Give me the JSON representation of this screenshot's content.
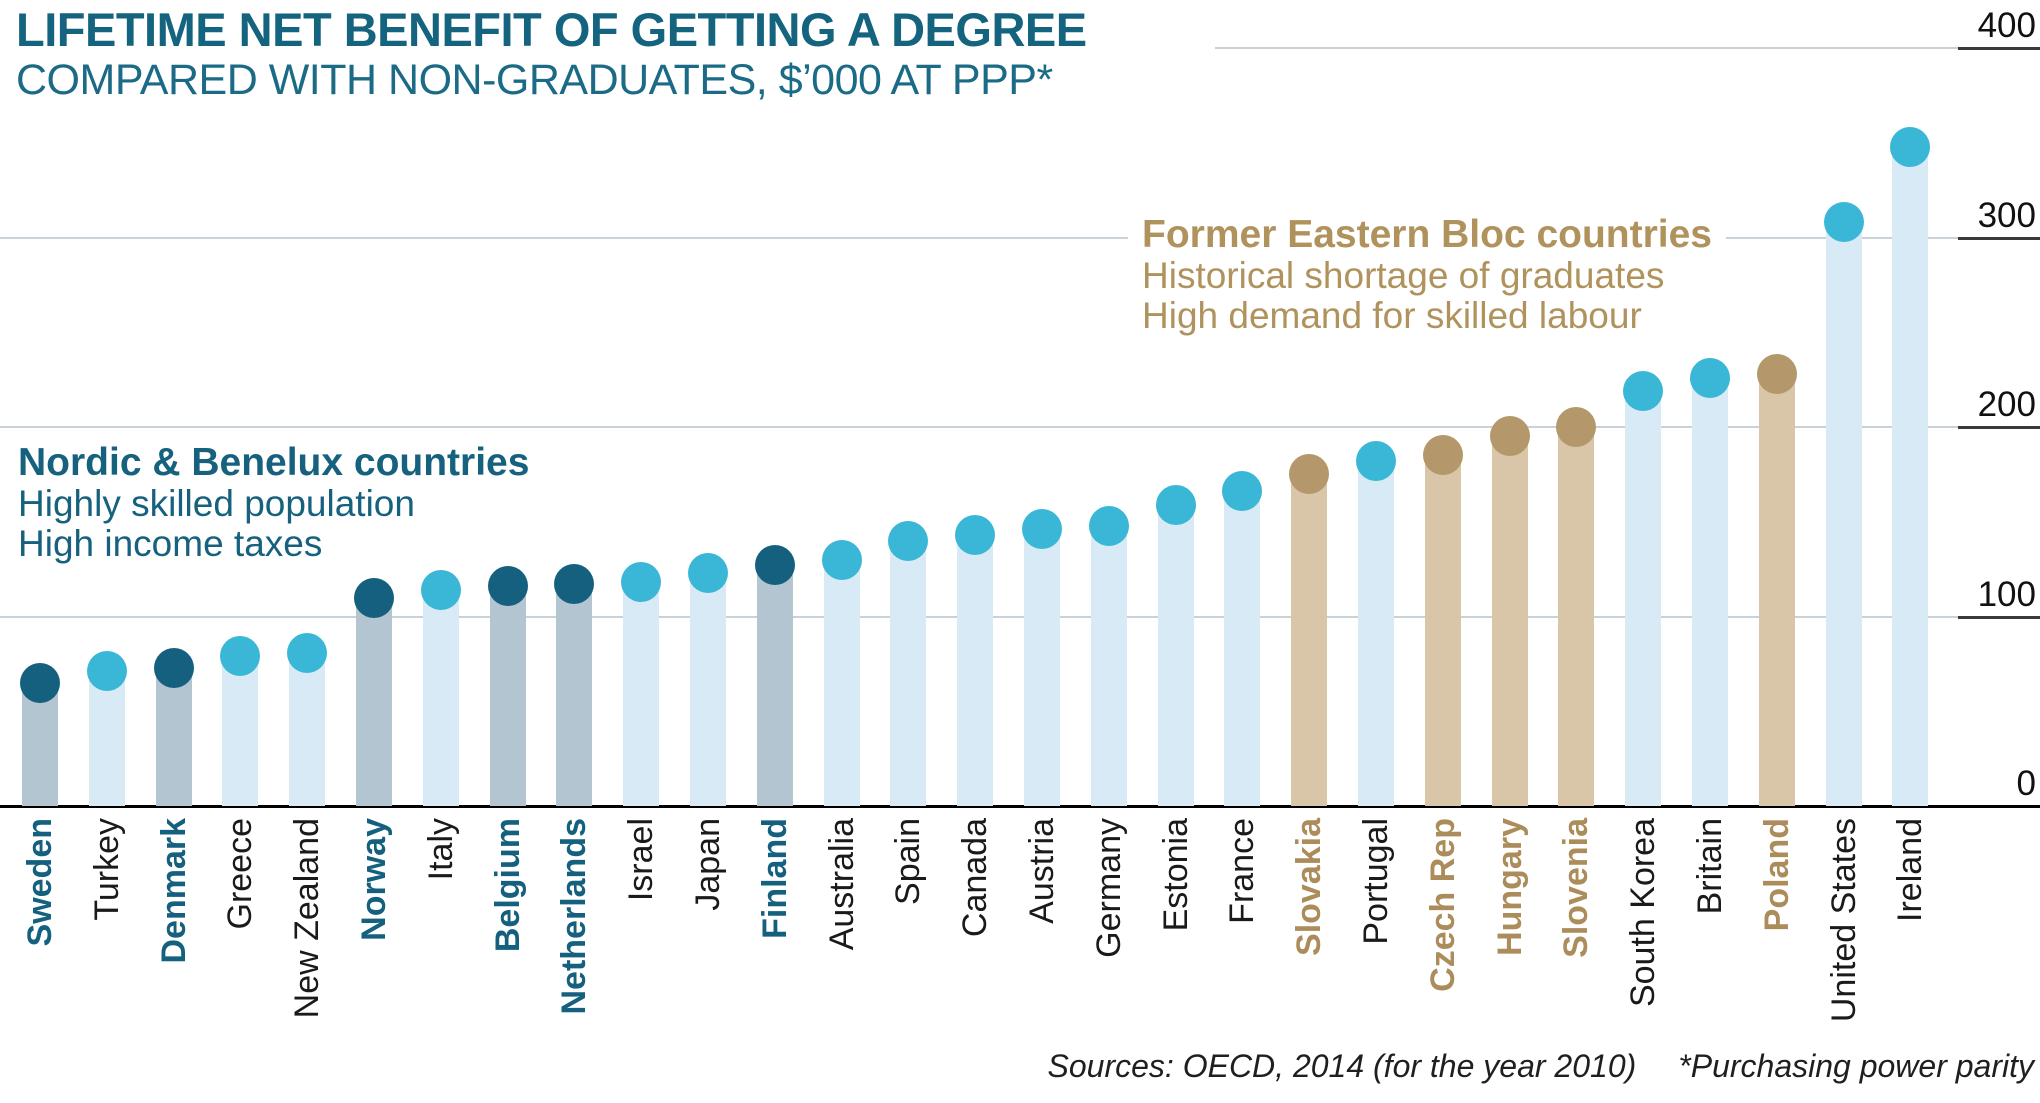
{
  "title": "LIFETIME NET BENEFIT OF GETTING A DEGREE",
  "subtitle": "COMPARED WITH NON-GRADUATES, $’000 AT PPP*",
  "axis": {
    "ticks": [
      400,
      300,
      200,
      100,
      0
    ],
    "number_color": "#111111",
    "gridline_color": "#c9d2d8"
  },
  "annotations": {
    "nordic": {
      "heading": "Nordic & Benelux countries",
      "line1": "Highly skilled population",
      "line2": "High income taxes",
      "color": "#16617e"
    },
    "eastern": {
      "heading": "Former Eastern Bloc countries",
      "line1": "Historical shortage of graduates",
      "line2": "High demand for skilled labour",
      "color": "#b0925c"
    }
  },
  "source": {
    "sources": "Sources: OECD, 2014 (for the year 2010)",
    "footnote": "*Purchasing power parity"
  },
  "chart_data": {
    "type": "bar",
    "style": "lollipop",
    "title": "Lifetime net benefit of getting a degree",
    "subtitle_units": "$'000 at PPP",
    "ylim": [
      0,
      400
    ],
    "grid": true,
    "axis_side": "right",
    "categories": [
      "Sweden",
      "Turkey",
      "Denmark",
      "Greece",
      "New Zealand",
      "Norway",
      "Italy",
      "Belgium",
      "Netherlands",
      "Israel",
      "Japan",
      "Finland",
      "Australia",
      "Spain",
      "Canada",
      "Austria",
      "Germany",
      "Estonia",
      "France",
      "Slovakia",
      "Portugal",
      "Czech Rep",
      "Hungary",
      "Slovenia",
      "South Korea",
      "Britain",
      "Poland",
      "United States",
      "Ireland"
    ],
    "values": [
      65,
      71,
      73,
      79,
      81,
      110,
      114,
      116,
      117,
      118,
      123,
      127,
      130,
      140,
      143,
      146,
      148,
      159,
      166,
      175,
      182,
      185,
      195,
      200,
      219,
      226,
      228,
      308,
      348
    ],
    "groups": [
      "nordic",
      "default",
      "nordic",
      "default",
      "default",
      "nordic",
      "default",
      "nordic",
      "nordic",
      "default",
      "default",
      "nordic",
      "default",
      "default",
      "default",
      "default",
      "default",
      "default",
      "default",
      "eastern",
      "default",
      "eastern",
      "eastern",
      "eastern",
      "default",
      "default",
      "eastern",
      "default",
      "default"
    ],
    "group_styles": {
      "default": {
        "bar": "#d7eaf5",
        "dot": "#3ab7d6",
        "label": "#1a1a1a",
        "label_bold": false
      },
      "nordic": {
        "bar": "#b3c5d1",
        "dot": "#14607e",
        "label": "#14607e",
        "label_bold": true
      },
      "eastern": {
        "bar": "#d9c5a7",
        "dot": "#b4976a",
        "label": "#ab8c5a",
        "label_bold": true
      }
    }
  }
}
